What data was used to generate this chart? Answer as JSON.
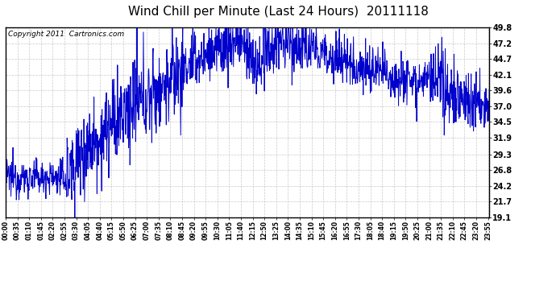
{
  "title": "Wind Chill per Minute (Last 24 Hours)  20111118",
  "copyright": "Copyright 2011  Cartronics.com",
  "y_ticks": [
    19.1,
    21.7,
    24.2,
    26.8,
    29.3,
    31.9,
    34.5,
    37.0,
    39.6,
    42.1,
    44.7,
    47.2,
    49.8
  ],
  "y_min": 19.1,
  "y_max": 49.8,
  "line_color": "#0000CC",
  "bg_color": "#ffffff",
  "grid_color": "#bbbbbb",
  "title_fontsize": 11,
  "copyright_fontsize": 6.5,
  "x_labels": [
    "00:00",
    "00:35",
    "01:10",
    "01:45",
    "02:20",
    "02:55",
    "03:30",
    "04:05",
    "04:40",
    "05:15",
    "05:50",
    "06:25",
    "07:00",
    "07:35",
    "08:10",
    "08:45",
    "09:20",
    "09:55",
    "10:30",
    "11:05",
    "11:40",
    "12:15",
    "12:50",
    "13:25",
    "14:00",
    "14:35",
    "15:10",
    "15:45",
    "16:20",
    "16:55",
    "17:30",
    "18:05",
    "18:40",
    "19:15",
    "19:50",
    "20:25",
    "21:00",
    "21:35",
    "22:10",
    "22:45",
    "23:20",
    "23:55"
  ]
}
